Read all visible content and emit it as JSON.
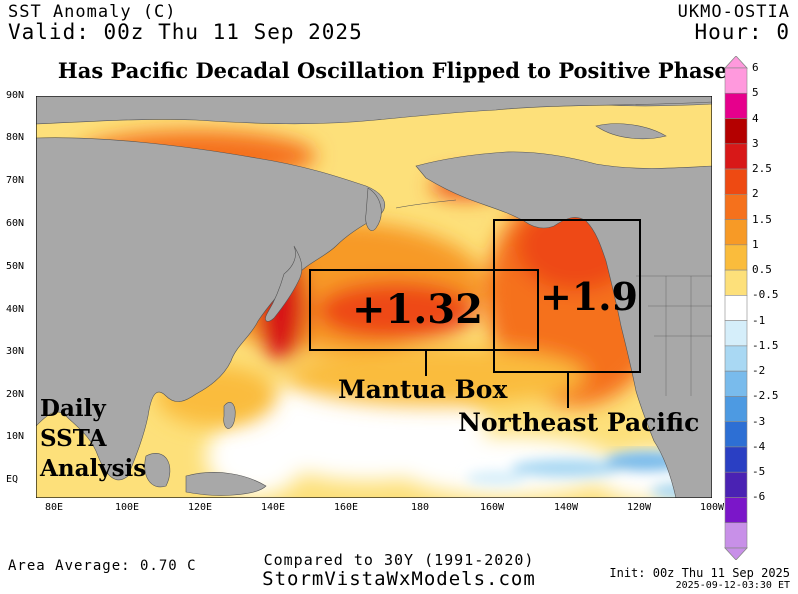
{
  "header": {
    "product": "SST Anomaly (C)",
    "valid": "Valid: 00z Thu 11 Sep 2025",
    "source": "UKMO-OSTIA",
    "hour": "Hour: 0"
  },
  "title": "Has Pacific Decadal Oscillation Flipped to Positive Phase?",
  "map": {
    "lat_labels": [
      "90N",
      "80N",
      "70N",
      "60N",
      "50N",
      "40N",
      "30N",
      "20N",
      "10N",
      "EQ"
    ],
    "lon_labels": [
      "80E",
      "100E",
      "120E",
      "140E",
      "160E",
      "180",
      "160W",
      "140W",
      "120W",
      "100W"
    ],
    "boxes": [
      {
        "name": "Mantua Box",
        "value": "+1.32"
      },
      {
        "name": "Northeast Pacific",
        "value": "+1.9"
      }
    ],
    "side_label": [
      "Daily",
      "SSTA",
      "Analysis"
    ],
    "land_color": "#a8a8a8",
    "ocean_neutral_color": "#ffffff"
  },
  "colorbar": {
    "labels": [
      "6",
      "5",
      "4",
      "3",
      "2.5",
      "2",
      "1.5",
      "1",
      "0.5",
      "-0.5",
      "-1",
      "-1.5",
      "-2",
      "-2.5",
      "-3",
      "-4",
      "-5",
      "-6"
    ],
    "colors": [
      "#ff99dd",
      "#e6008c",
      "#b40000",
      "#d81818",
      "#ee4a12",
      "#f5711c",
      "#f79a26",
      "#fabc3c",
      "#fde07a",
      "#ffffff",
      "#d5eefa",
      "#a9d8f3",
      "#79bbec",
      "#4d9ae2",
      "#2d6fd4",
      "#2a3fc3",
      "#4a22b3",
      "#7b16c9",
      "#c890e8"
    ]
  },
  "footer": {
    "area_average": "Area Average: 0.70 C",
    "compared": "Compared to 30Y (1991-2020)",
    "site": "StormVistaWxModels.com",
    "init": "Init: 00z Thu 11 Sep 2025",
    "stamp": "2025-09-12-03:30 ET"
  }
}
